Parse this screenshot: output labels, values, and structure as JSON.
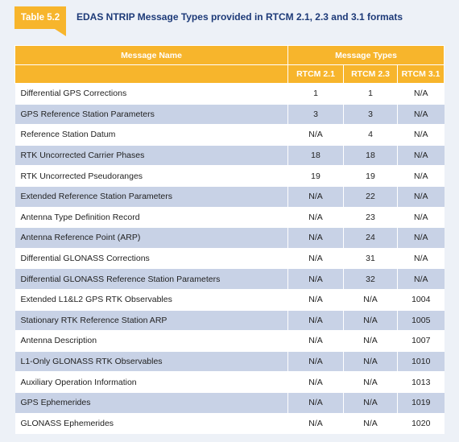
{
  "header": {
    "label": "Table 5.2",
    "title": "EDAS NTRIP Message Types provided in RTCM 2.1, 2.3 and 3.1 formats"
  },
  "table": {
    "columns": [
      "Message Name",
      "Message Types"
    ],
    "subcolumns": [
      "RTCM 2.1",
      "RTCM 2.3",
      "RTCM 3.1"
    ],
    "rows": [
      [
        "Differential GPS Corrections",
        1,
        1,
        "N/A"
      ],
      [
        "GPS Reference Station Parameters",
        3,
        3,
        "N/A"
      ],
      [
        "Reference Station Datum",
        "N/A",
        4,
        "N/A"
      ],
      [
        "RTK Uncorrected Carrier Phases",
        18,
        18,
        "N/A"
      ],
      [
        "RTK Uncorrected Pseudoranges",
        19,
        19,
        "N/A"
      ],
      [
        "Extended Reference Station Parameters",
        "N/A",
        22,
        "N/A"
      ],
      [
        "Antenna Type Definition Record",
        "N/A",
        23,
        "N/A"
      ],
      [
        "Antenna Reference Point (ARP)",
        "N/A",
        24,
        "N/A"
      ],
      [
        "Differential GLONASS Corrections",
        "N/A",
        31,
        "N/A"
      ],
      [
        "Differential GLONASS Reference Station Parameters",
        "N/A",
        32,
        "N/A"
      ],
      [
        "Extended L1&L2 GPS RTK Observables",
        "N/A",
        "N/A",
        1004
      ],
      [
        "Stationary RTK Reference Station ARP",
        "N/A",
        "N/A",
        1005
      ],
      [
        "Antenna Description",
        "N/A",
        "N/A",
        1007
      ],
      [
        "L1-Only GLONASS RTK Observables",
        "N/A",
        "N/A",
        1010
      ],
      [
        "Auxiliary Operation Information",
        "N/A",
        "N/A",
        1013
      ],
      [
        "GPS Ephemerides",
        "N/A",
        "N/A",
        1019
      ],
      [
        "GLONASS Ephemerides",
        "N/A",
        "N/A",
        1020
      ]
    ]
  }
}
